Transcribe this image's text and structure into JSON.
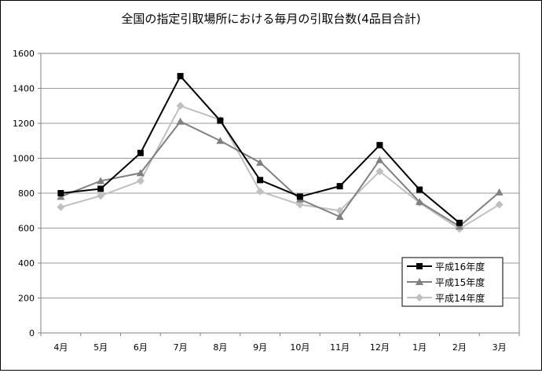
{
  "chart_data": {
    "type": "line",
    "title": "全国の指定引取場所における毎月の引取台数(4品目合計)",
    "xlabel": "",
    "ylabel": "",
    "categories": [
      "4月",
      "5月",
      "6月",
      "7月",
      "8月",
      "9月",
      "10月",
      "11月",
      "12月",
      "1月",
      "2月",
      "3月"
    ],
    "ylim": [
      0,
      1600
    ],
    "yticks": [
      "0",
      "200",
      "400",
      "600",
      "800",
      "1000",
      "1200",
      "1400",
      "1600"
    ],
    "grid": true,
    "legend_position": "bottom-right",
    "series": [
      {
        "name": "平成16年度",
        "color": "#000000",
        "marker": "square",
        "values": [
          800,
          825,
          1030,
          1470,
          1215,
          875,
          780,
          840,
          1075,
          820,
          630,
          null
        ]
      },
      {
        "name": "平成15年度",
        "color": "#808080",
        "marker": "triangle",
        "values": [
          780,
          870,
          915,
          1210,
          1100,
          975,
          765,
          665,
          990,
          750,
          610,
          805
        ]
      },
      {
        "name": "平成14年度",
        "color": "#c0c0c0",
        "marker": "diamond",
        "values": [
          720,
          785,
          870,
          1300,
          1220,
          810,
          735,
          700,
          925,
          745,
          595,
          735
        ]
      }
    ]
  }
}
